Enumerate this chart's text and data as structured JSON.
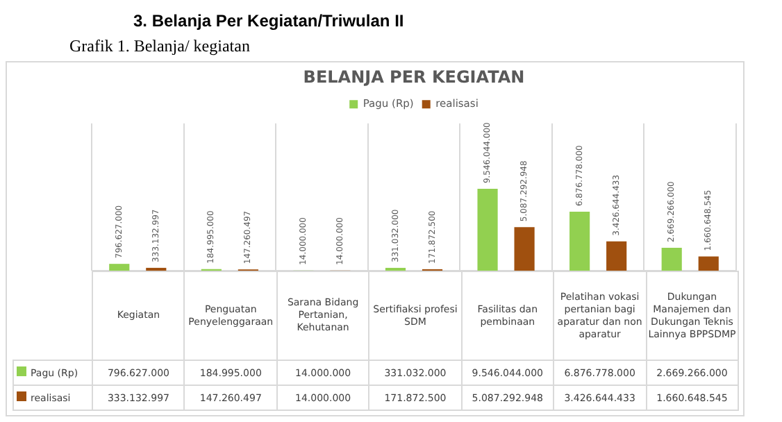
{
  "chart_data": {
    "type": "bar",
    "title": "BELANJA PER KEGIATAN",
    "annotations": [
      "3. Belanja Per Kegiatan/Triwulan II",
      "Grafik 1. Belanja/ kegiatan"
    ],
    "categories": [
      "Kegiatan",
      "Penguatan Penyelenggaraan",
      "Sarana Bidang Pertanian, Kehutanan",
      "Sertifiaksi profesi SDM",
      "Fasilitas dan pembinaan",
      "Pelatihan vokasi pertanian bagi aparatur dan non aparatur",
      "Dukungan Manajemen dan Dukungan Teknis Lainnya BPPSDMP"
    ],
    "series": [
      {
        "name": "Pagu (Rp)",
        "color": "#92d050",
        "values": [
          796627000,
          184995000,
          14000000,
          331032000,
          9546044000,
          6876778000,
          2669266000
        ],
        "value_labels": [
          "796.627.000",
          "184.995.000",
          "14.000.000",
          "331.032.000",
          "9.546.044.000",
          "6.876.778.000",
          "2.669.266.000"
        ]
      },
      {
        "name": "realisasi",
        "color": "#a0500f",
        "values": [
          333132997,
          147260497,
          14000000,
          171872500,
          5087292948,
          3426644433,
          1660648545
        ],
        "value_labels": [
          "333.132.997",
          "147.260.497",
          "14.000.000",
          "171.872.500",
          "5.087.292.948",
          "3.426.644.433",
          "1.660.648.545"
        ]
      }
    ],
    "legend": "top",
    "grid": "x"
  }
}
